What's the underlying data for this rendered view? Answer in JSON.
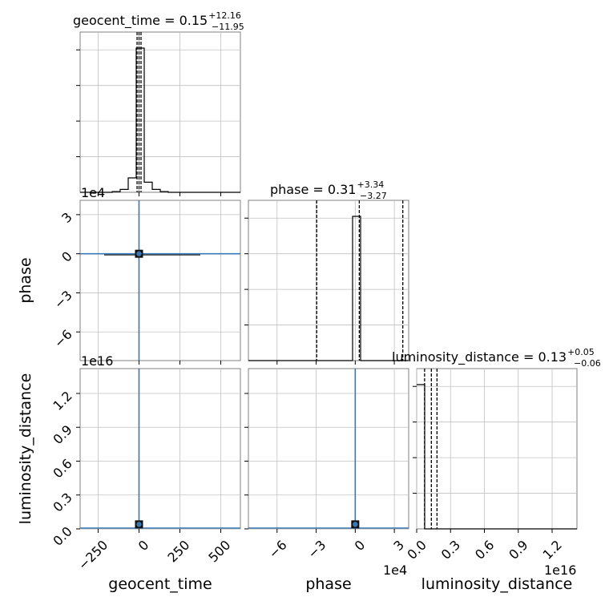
{
  "chart_data": {
    "type": "corner",
    "parameters": [
      "geocent_time",
      "phase",
      "luminosity_distance"
    ],
    "titles": [
      {
        "param": "geocent_time",
        "prefix": "geocent_time = ",
        "value": "0.15",
        "plus": "+12.16",
        "minus": "−11.95"
      },
      {
        "param": "phase",
        "prefix": "phase = ",
        "value": "0.31",
        "plus": "+3.34",
        "minus": "−3.27"
      },
      {
        "param": "luminosity_distance",
        "prefix": "luminosity_distance = ",
        "value": "0.13",
        "plus": "+0.05",
        "minus": "−0.06"
      }
    ],
    "axis_labels": {
      "x": [
        "geocent_time",
        "phase",
        "luminosity_distance"
      ],
      "y": [
        "phase",
        "luminosity_distance"
      ]
    },
    "offsets": {
      "phase_y": "1e4",
      "luminosity_distance_y": "1e16",
      "phase_x": "1e4",
      "luminosity_distance_x": "1e16"
    },
    "ranges": {
      "geocent_time": [
        -360,
        620
      ],
      "phase": [
        -8.2,
        4.1
      ],
      "luminosity_distance": [
        0,
        1.42
      ]
    },
    "ticks": {
      "geocent_time": [
        -250,
        0,
        250,
        500
      ],
      "geocent_time_labels": [
        "−250",
        "0",
        "250",
        "500"
      ],
      "phase": [
        -6,
        -3,
        0,
        3
      ],
      "phase_labels": [
        "−6",
        "−3",
        "0",
        "3"
      ],
      "luminosity_distance": [
        0,
        0.3,
        0.6,
        0.9,
        1.2
      ],
      "luminosity_distance_labels": [
        "0.0",
        "0.3",
        "0.6",
        "0.9",
        "1.2"
      ]
    },
    "hist_geocent_time": {
      "edges": [
        -360,
        -311,
        -262,
        -213,
        -164,
        -115,
        -66,
        -17,
        32,
        81,
        130,
        179,
        228,
        277,
        326,
        375,
        424,
        473,
        522,
        571,
        620
      ],
      "heights": [
        0,
        0,
        0,
        0,
        0.005,
        0.02,
        0.1,
        1.0,
        0.07,
        0.02,
        0.005,
        0,
        0,
        0,
        0,
        0,
        0,
        0,
        0,
        0
      ],
      "median": 0.15,
      "lower": -11.8,
      "upper": 12.31
    },
    "hist_phase": {
      "edges": [
        -8.2,
        -7.585,
        -6.97,
        -6.355,
        -5.74,
        -5.125,
        -4.51,
        -3.895,
        -3.28,
        -2.665,
        -2.05,
        -1.435,
        -0.82,
        -0.205,
        0.41,
        1.025,
        1.64,
        2.255,
        2.87,
        3.485,
        4.1
      ],
      "heights": [
        0,
        0,
        0,
        0,
        0,
        0,
        0,
        0,
        0,
        0,
        0,
        0,
        0,
        1.0,
        0,
        0,
        0,
        0,
        0,
        0
      ],
      "median": 0.31,
      "lower": -2.96,
      "upper": 3.65
    },
    "hist_luminosity_distance": {
      "edges": [
        0,
        0.071,
        0.142,
        0.213,
        0.284,
        0.355,
        0.426,
        0.497,
        0.568,
        0.639,
        0.71,
        0.781,
        0.852,
        0.923,
        0.994,
        1.065,
        1.136,
        1.207,
        1.278,
        1.349,
        1.42
      ],
      "heights": [
        1.0,
        0,
        0,
        0,
        0,
        0,
        0,
        0,
        0,
        0,
        0,
        0,
        0,
        0,
        0,
        0,
        0,
        0,
        0,
        0
      ],
      "median": 0.13,
      "lower": 0.07,
      "upper": 0.18
    },
    "scatter_peak": {
      "geocent_time": 0,
      "phase": 0,
      "luminosity_distance": 0.04
    },
    "colors": {
      "scatter": "#3a78b5",
      "density": "#000000",
      "grid": "#c0c0c0",
      "frame": "#808080"
    },
    "grid": true
  }
}
